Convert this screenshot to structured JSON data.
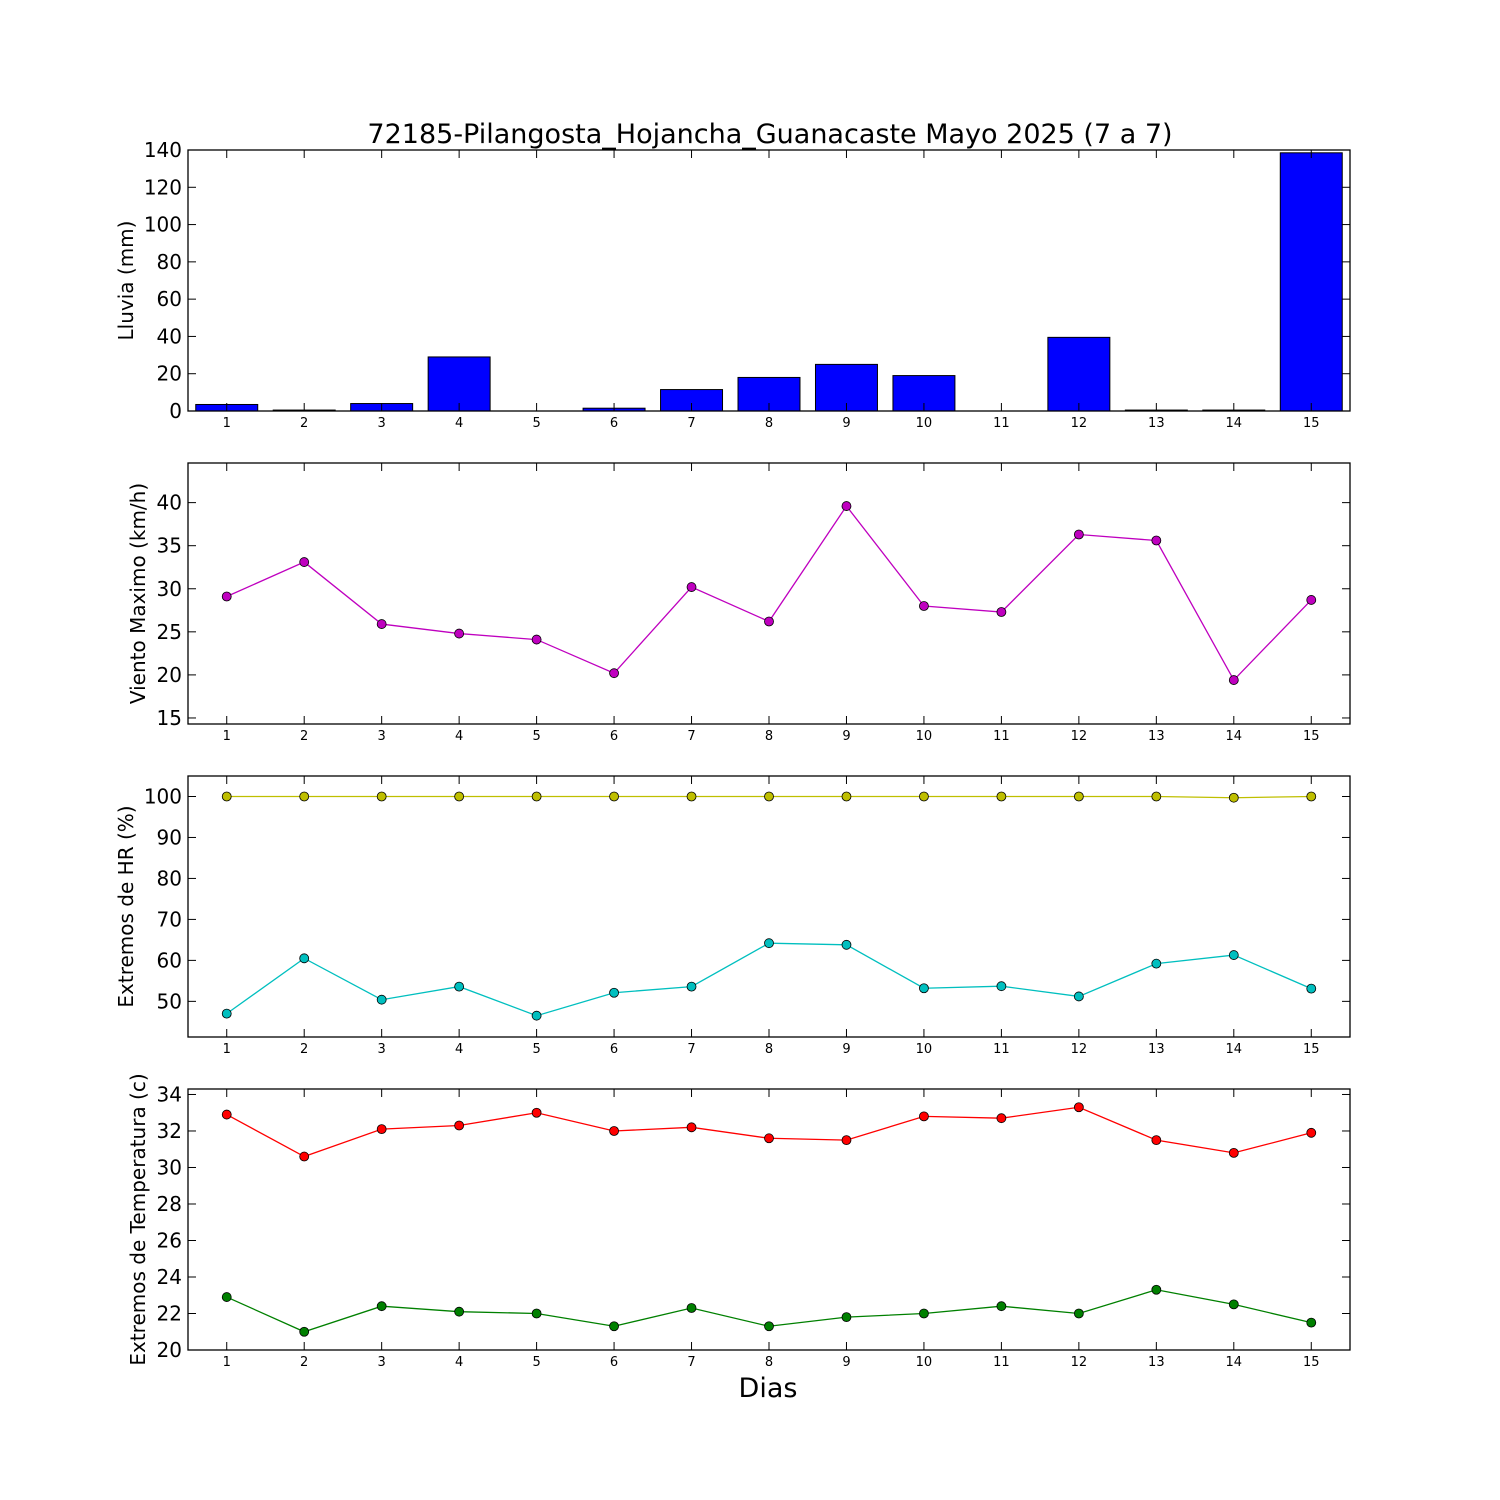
{
  "chart_data": [
    {
      "type": "bar",
      "title": "72185-Pilangosta_Hojancha_Guanacaste Mayo 2025  (7 a 7)",
      "ylabel": "Lluvia (mm)",
      "xlabel": "",
      "categories": [
        "1",
        "2",
        "3",
        "4",
        "5",
        "6",
        "7",
        "8",
        "9",
        "10",
        "11",
        "12",
        "13",
        "14",
        "15"
      ],
      "series": [
        {
          "color": "#0000ff",
          "values": [
            3.5,
            0.5,
            4.0,
            29.0,
            0.0,
            1.5,
            11.5,
            18.0,
            25.0,
            19.0,
            0.0,
            39.5,
            0.5,
            0.5,
            138.5
          ]
        }
      ],
      "yticks": [
        0,
        20,
        40,
        60,
        80,
        100,
        120,
        140
      ],
      "ylim": [
        0,
        140
      ],
      "grid": false
    },
    {
      "type": "line",
      "title": "",
      "ylabel": "Viento Maximo (km/h)",
      "xlabel": "",
      "x": [
        1,
        2,
        3,
        4,
        5,
        6,
        7,
        8,
        9,
        10,
        11,
        12,
        13,
        14,
        15
      ],
      "series": [
        {
          "color": "#bf00bf",
          "values": [
            29.1,
            33.1,
            25.9,
            24.8,
            24.1,
            20.2,
            30.2,
            26.2,
            39.6,
            28.0,
            27.3,
            36.3,
            35.6,
            19.4,
            28.7
          ]
        }
      ],
      "yticks": [
        15,
        20,
        25,
        30,
        35,
        40
      ],
      "ylim": [
        14.3,
        44.6
      ],
      "grid": false
    },
    {
      "type": "line",
      "title": "",
      "ylabel": "Extremos de HR (%)",
      "xlabel": "",
      "x": [
        1,
        2,
        3,
        4,
        5,
        6,
        7,
        8,
        9,
        10,
        11,
        12,
        13,
        14,
        15
      ],
      "series": [
        {
          "color": "#bfbf00",
          "values": [
            100,
            100,
            100,
            100,
            100,
            100,
            100,
            100,
            100,
            100,
            100,
            100,
            100,
            99.7,
            100
          ]
        },
        {
          "color": "#00bfbf",
          "values": [
            47.0,
            60.5,
            50.4,
            53.6,
            46.5,
            52.1,
            53.6,
            64.2,
            63.8,
            53.2,
            53.7,
            51.2,
            59.2,
            61.3,
            53.1
          ]
        }
      ],
      "yticks": [
        50,
        60,
        70,
        80,
        90,
        100
      ],
      "ylim": [
        41.3,
        105
      ],
      "grid": false
    },
    {
      "type": "line",
      "title": "",
      "ylabel": "Extremos de Temperatura (c)",
      "xlabel": "Dias",
      "x": [
        1,
        2,
        3,
        4,
        5,
        6,
        7,
        8,
        9,
        10,
        11,
        12,
        13,
        14,
        15
      ],
      "series": [
        {
          "color": "#ff0000",
          "values": [
            32.9,
            30.6,
            32.1,
            32.3,
            33.0,
            32.0,
            32.2,
            31.6,
            31.5,
            32.8,
            32.7,
            33.3,
            31.5,
            30.8,
            31.9
          ]
        },
        {
          "color": "#008000",
          "values": [
            22.9,
            21.0,
            22.4,
            22.1,
            22.0,
            21.3,
            22.3,
            21.3,
            21.8,
            22.0,
            22.4,
            22.0,
            23.3,
            22.5,
            21.5
          ]
        }
      ],
      "yticks": [
        20,
        22,
        24,
        26,
        28,
        30,
        32,
        34
      ],
      "ylim": [
        20,
        34.3
      ],
      "grid": false
    }
  ]
}
